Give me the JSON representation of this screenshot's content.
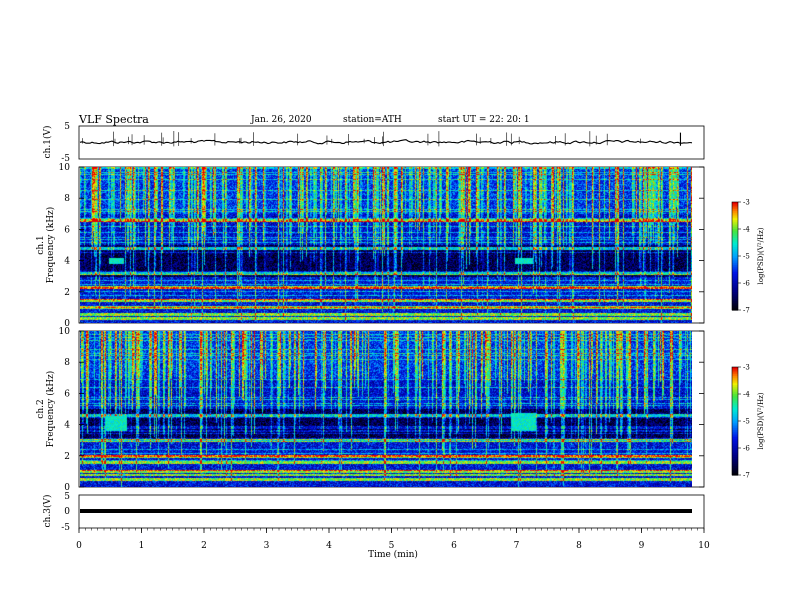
{
  "header": {
    "title": "VLF Spectra",
    "date": "Jan. 26, 2020",
    "station": "station=ATH",
    "start": "start UT = 22: 20: 1"
  },
  "chart_data": [
    {
      "type": "line",
      "name": "ch1-waveform",
      "ylabel": "ch.1(V)",
      "ylim": [
        -5,
        5
      ],
      "yticks": [
        "5",
        "-5"
      ],
      "xlim": [
        0,
        10
      ],
      "note_approx_level": 0.0
    },
    {
      "type": "heatmap",
      "name": "ch1-spectrogram",
      "ylabel": "ch.1\nFrequency (kHz)",
      "ylim": [
        0,
        10
      ],
      "yticks": [
        "0",
        "2",
        "4",
        "6",
        "8",
        "10"
      ],
      "xlim": [
        0,
        9.8
      ],
      "colorbar": {
        "label": "log(PSD)(V²/Hz)",
        "range": [
          -7,
          -3
        ],
        "ticks": [
          "-3",
          "-4",
          "-5",
          "-6",
          "-7"
        ]
      },
      "features": {
        "strong_bands_khz": [
          0.3,
          0.6,
          1.0,
          1.5,
          2.3,
          3.2,
          4.8,
          6.6
        ],
        "patches": [
          {
            "t": [
              0.45,
              0.7
            ],
            "f": [
              3.8,
              4.2
            ]
          },
          {
            "t": [
              6.95,
              7.25
            ],
            "f": [
              3.8,
              4.2
            ]
          }
        ]
      }
    },
    {
      "type": "heatmap",
      "name": "ch2-spectrogram",
      "ylabel": "ch.2\nFrequency (kHz)",
      "ylim": [
        0,
        10
      ],
      "yticks": [
        "0",
        "2",
        "4",
        "6",
        "8",
        "10"
      ],
      "xlim": [
        0,
        9.8
      ],
      "colorbar": {
        "label": "log(PSD)(V²/Hz)",
        "range": [
          -7,
          -3
        ],
        "ticks": [
          "-3",
          "-4",
          "-5",
          "-6",
          "-7"
        ]
      },
      "features": {
        "strong_bands_khz": [
          0.5,
          0.8,
          1.0,
          1.6,
          2.0,
          3.0,
          4.6
        ],
        "patches": [
          {
            "t": [
              0.4,
              0.75
            ],
            "f": [
              3.6,
              4.6
            ]
          },
          {
            "t": [
              6.9,
              7.3
            ],
            "f": [
              3.6,
              4.8
            ]
          }
        ]
      }
    },
    {
      "type": "line",
      "name": "ch3-waveform",
      "ylabel": "ch.3(V)",
      "ylim": [
        -5,
        5
      ],
      "yticks": [
        "5",
        "0",
        "-5"
      ],
      "xlim": [
        0,
        10
      ],
      "xlabel": "Time (min)",
      "xticks": [
        "0",
        "1",
        "2",
        "3",
        "4",
        "5",
        "6",
        "7",
        "8",
        "9",
        "10"
      ],
      "note_approx_level": 0.0
    }
  ]
}
